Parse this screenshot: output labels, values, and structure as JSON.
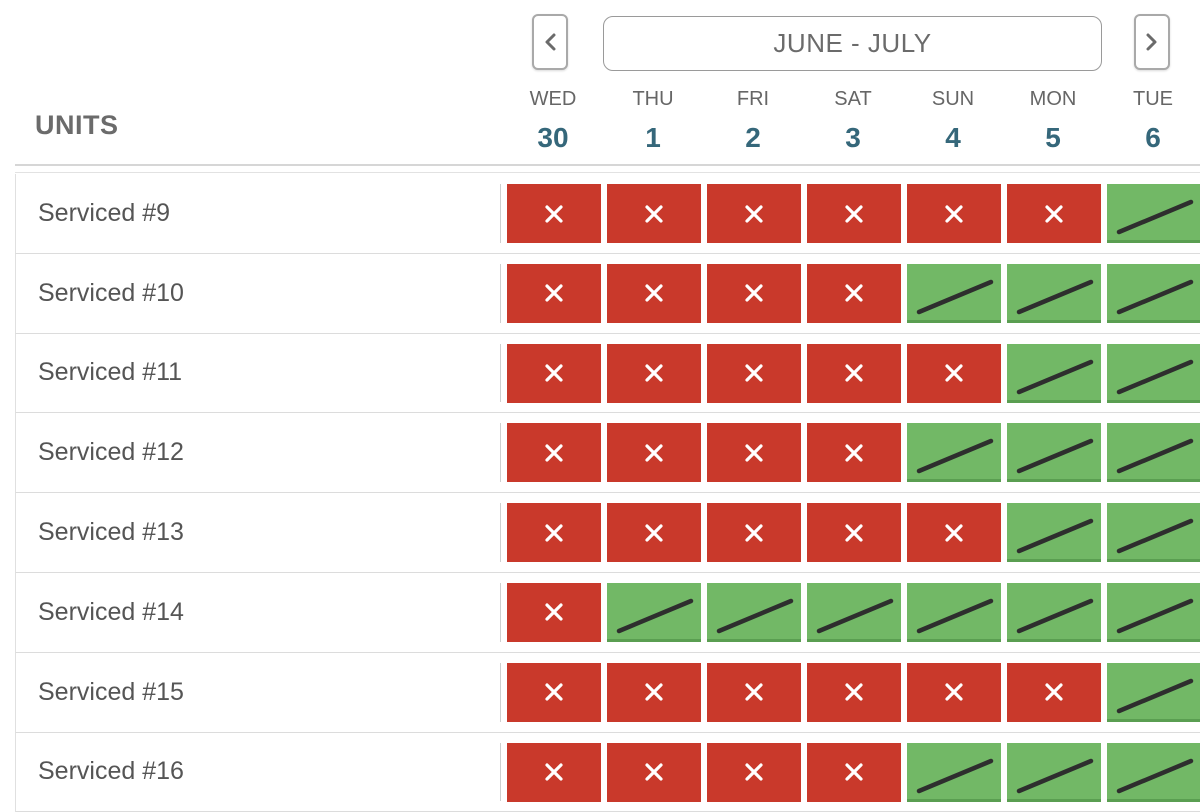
{
  "header": {
    "units_label": "UNITS",
    "month_range": "JUNE - JULY",
    "prev_icon": "chevron-left-icon",
    "next_icon": "chevron-right-icon"
  },
  "days": [
    {
      "name": "WED",
      "num": "30"
    },
    {
      "name": "THU",
      "num": "1"
    },
    {
      "name": "FRI",
      "num": "2"
    },
    {
      "name": "SAT",
      "num": "3"
    },
    {
      "name": "SUN",
      "num": "4"
    },
    {
      "name": "MON",
      "num": "5"
    },
    {
      "name": "TUE",
      "num": "6"
    }
  ],
  "colors": {
    "booked": "#c9392b",
    "available": "#72b866",
    "day_number": "#35677a"
  },
  "units": [
    {
      "name": "Serviced #9",
      "status": [
        "booked",
        "booked",
        "booked",
        "booked",
        "booked",
        "booked",
        "available"
      ]
    },
    {
      "name": "Serviced #10",
      "status": [
        "booked",
        "booked",
        "booked",
        "booked",
        "available",
        "available",
        "available"
      ]
    },
    {
      "name": "Serviced #11",
      "status": [
        "booked",
        "booked",
        "booked",
        "booked",
        "booked",
        "available",
        "available"
      ]
    },
    {
      "name": "Serviced #12",
      "status": [
        "booked",
        "booked",
        "booked",
        "booked",
        "available",
        "available",
        "available"
      ]
    },
    {
      "name": "Serviced #13",
      "status": [
        "booked",
        "booked",
        "booked",
        "booked",
        "booked",
        "available",
        "available"
      ]
    },
    {
      "name": "Serviced #14",
      "status": [
        "booked",
        "available",
        "available",
        "available",
        "available",
        "available",
        "available"
      ]
    },
    {
      "name": "Serviced #15",
      "status": [
        "booked",
        "booked",
        "booked",
        "booked",
        "booked",
        "booked",
        "available"
      ]
    },
    {
      "name": "Serviced #16",
      "status": [
        "booked",
        "booked",
        "booked",
        "booked",
        "available",
        "available",
        "available"
      ]
    }
  ]
}
